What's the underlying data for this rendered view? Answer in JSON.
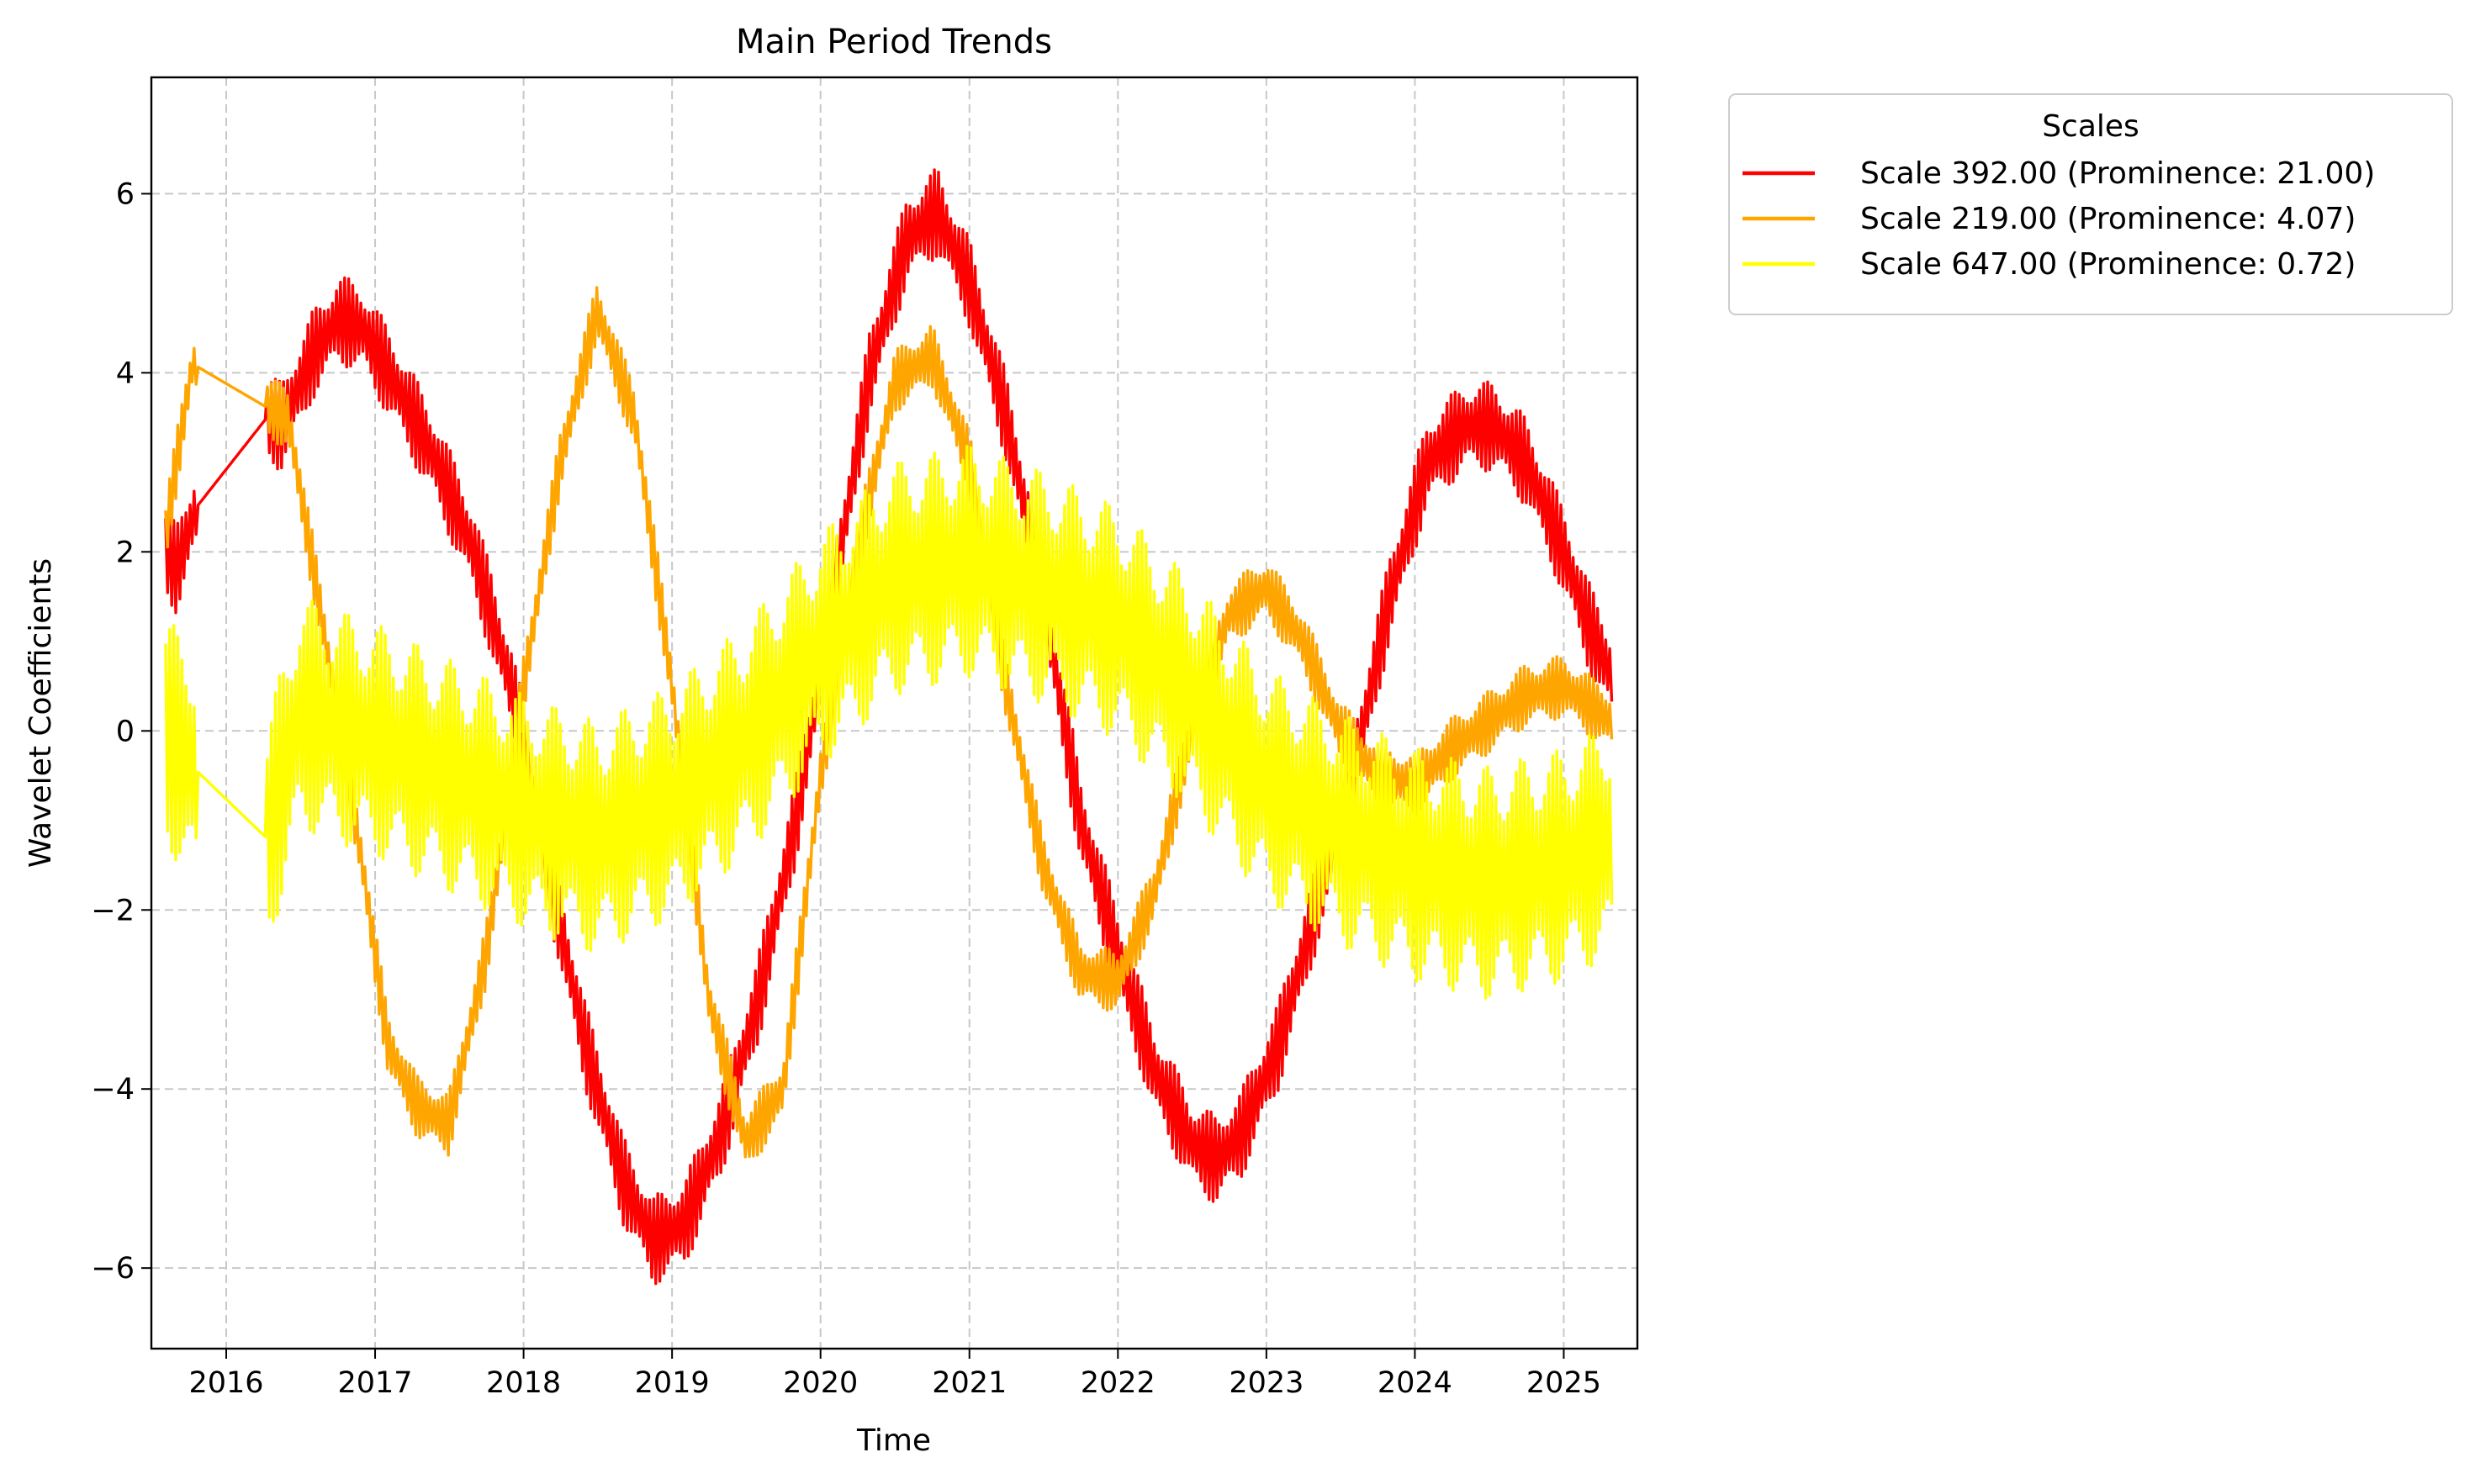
{
  "chart_data": {
    "type": "line",
    "title": "Main Period Trends",
    "xlabel": "Time",
    "ylabel": "Wavelet Coefficients",
    "xlim": [
      "2015-07-01",
      "2025-07-01"
    ],
    "ylim": [
      -6.9,
      7.3
    ],
    "x_ticks": [
      "2016",
      "2017",
      "2018",
      "2019",
      "2020",
      "2021",
      "2022",
      "2023",
      "2024",
      "2025"
    ],
    "y_ticks": [
      -6,
      -4,
      -2,
      0,
      2,
      4,
      6
    ],
    "y_tick_labels": [
      "−6",
      "−4",
      "−2",
      "0",
      "2",
      "4",
      "6"
    ],
    "grid": true,
    "legend": {
      "title": "Scales",
      "placement": "outside-right-top"
    },
    "series": [
      {
        "name": "Scale 392.00 (Prominence: 21.00)",
        "color": "#ff0000",
        "oscillation_amplitude": 0.5,
        "x": [
          "2015-08-05",
          "2015-09-01",
          "2015-10-20",
          "2016-04-10",
          "2016-05-15",
          "2016-08-01",
          "2016-10-01",
          "2016-12-01",
          "2017-03-01",
          "2017-06-01",
          "2017-09-01",
          "2017-12-01",
          "2018-03-01",
          "2018-06-01",
          "2018-09-01",
          "2018-11-15",
          "2019-02-01",
          "2019-05-01",
          "2019-08-01",
          "2019-11-01",
          "2020-02-01",
          "2020-05-01",
          "2020-08-01",
          "2020-10-15",
          "2021-01-01",
          "2021-04-01",
          "2021-07-01",
          "2021-10-01",
          "2022-01-01",
          "2022-04-01",
          "2022-07-01",
          "2022-09-01",
          "2022-11-01",
          "2023-02-01",
          "2023-05-01",
          "2023-08-01",
          "2023-11-01",
          "2024-02-01",
          "2024-05-01",
          "2024-07-15",
          "2024-10-01",
          "2025-01-01",
          "2025-03-01",
          "2025-04-30"
        ],
        "y": [
          2.0,
          1.8,
          2.5,
          3.5,
          3.4,
          4.2,
          4.6,
          4.5,
          3.8,
          3.0,
          2.0,
          0.5,
          -1.5,
          -3.5,
          -5.0,
          -5.7,
          -5.5,
          -4.5,
          -3.0,
          -1.0,
          1.5,
          4.0,
          5.5,
          5.8,
          5.0,
          3.5,
          1.5,
          -1.0,
          -2.5,
          -3.8,
          -4.6,
          -4.8,
          -4.5,
          -3.5,
          -2.0,
          -0.5,
          1.5,
          3.0,
          3.4,
          3.4,
          3.0,
          2.0,
          1.2,
          0.6
        ]
      },
      {
        "name": "Scale 219.00 (Prominence: 4.07)",
        "color": "#ffa500",
        "oscillation_amplitude": 0.35,
        "x": [
          "2015-08-05",
          "2015-09-01",
          "2015-10-10",
          "2016-04-15",
          "2016-06-01",
          "2016-09-01",
          "2016-12-01",
          "2017-02-01",
          "2017-04-15",
          "2017-07-01",
          "2017-10-01",
          "2018-01-01",
          "2018-04-01",
          "2018-07-01",
          "2018-10-01",
          "2019-01-01",
          "2019-04-01",
          "2019-07-01",
          "2019-10-01",
          "2020-01-01",
          "2020-04-01",
          "2020-07-01",
          "2020-10-01",
          "2021-01-01",
          "2021-04-01",
          "2021-07-01",
          "2021-10-01",
          "2022-01-01",
          "2022-04-01",
          "2022-07-01",
          "2022-10-01",
          "2023-01-01",
          "2023-04-01",
          "2023-07-01",
          "2023-10-01",
          "2024-01-01",
          "2024-04-01",
          "2024-07-01",
          "2024-10-01",
          "2025-01-01",
          "2025-04-30"
        ],
        "y": [
          2.2,
          3.0,
          4.1,
          3.6,
          3.5,
          1.0,
          -1.5,
          -3.5,
          -4.2,
          -4.4,
          -2.5,
          0.5,
          3.0,
          4.7,
          3.5,
          0.5,
          -3.0,
          -4.6,
          -4.0,
          -0.5,
          2.0,
          3.9,
          4.2,
          3.0,
          0.5,
          -1.5,
          -2.7,
          -2.8,
          -1.8,
          0.0,
          1.3,
          1.6,
          1.0,
          0.0,
          -0.5,
          -0.6,
          -0.2,
          0.1,
          0.4,
          0.5,
          0.1
        ]
      },
      {
        "name": "Scale 647.00 (Prominence: 0.72)",
        "color": "#ffff00",
        "oscillation_amplitude": 1.3,
        "x": [
          "2015-08-05",
          "2015-10-10",
          "2016-04-10",
          "2016-07-01",
          "2017-01-01",
          "2017-07-01",
          "2018-01-01",
          "2018-07-01",
          "2019-01-01",
          "2019-07-01",
          "2020-01-01",
          "2020-07-01",
          "2021-01-01",
          "2021-07-01",
          "2022-01-01",
          "2022-07-01",
          "2023-01-01",
          "2023-07-01",
          "2024-01-01",
          "2024-07-01",
          "2025-01-01",
          "2025-04-30"
        ],
        "y": [
          0.0,
          -0.4,
          -1.2,
          0.2,
          -0.1,
          -0.5,
          -0.9,
          -1.2,
          -0.8,
          -0.1,
          0.9,
          1.7,
          1.9,
          1.6,
          1.2,
          0.4,
          -0.6,
          -1.1,
          -1.5,
          -1.7,
          -1.5,
          -1.2
        ]
      }
    ]
  }
}
